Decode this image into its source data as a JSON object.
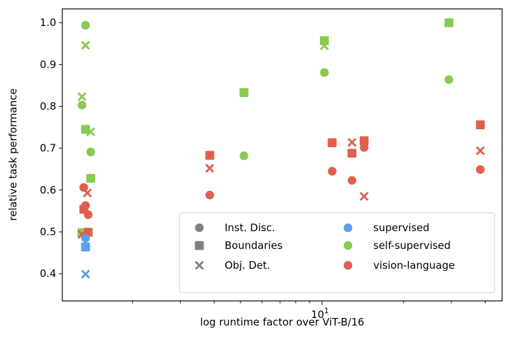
{
  "chart_data": {
    "type": "scatter",
    "title": "",
    "xlabel": "log runtime factor over ViT-B/16",
    "ylabel": "relative task performance",
    "xscale": "log",
    "xlim": [
      1.1,
      46.2
    ],
    "ylim": [
      0.335,
      1.033
    ],
    "xticks": [
      {
        "value": 10,
        "base": "10",
        "exp": "1"
      }
    ],
    "xminor": [
      2,
      3,
      4,
      5,
      6,
      7,
      8,
      9,
      20,
      30,
      40
    ],
    "yticks": [
      "0.4",
      "0.5",
      "0.6",
      "0.7",
      "0.8",
      "0.9",
      "1.0"
    ],
    "grid": false,
    "colors": {
      "supervised": "#5b9fe9",
      "self-supervised": "#8aca52",
      "vision-language": "#e06050",
      "legend_marker": "#808080"
    },
    "legend": {
      "placement": "lower-right",
      "markers": [
        {
          "label": "Inst. Disc.",
          "shape": "circle"
        },
        {
          "label": "Boundaries",
          "shape": "square"
        },
        {
          "label": "Obj. Det.",
          "shape": "x"
        }
      ],
      "groups": [
        {
          "label": "supervised",
          "key": "supervised"
        },
        {
          "label": "self-supervised",
          "key": "self-supervised"
        },
        {
          "label": "vision-language",
          "key": "vision-language"
        }
      ]
    },
    "points": [
      {
        "x": 1.34,
        "y": 0.994,
        "shape": "circle",
        "group": "self-supervised"
      },
      {
        "x": 1.34,
        "y": 0.946,
        "shape": "x",
        "group": "self-supervised"
      },
      {
        "x": 1.3,
        "y": 0.823,
        "shape": "x",
        "group": "self-supervised"
      },
      {
        "x": 1.3,
        "y": 0.803,
        "shape": "circle",
        "group": "self-supervised"
      },
      {
        "x": 1.34,
        "y": 0.745,
        "shape": "square",
        "group": "self-supervised"
      },
      {
        "x": 1.4,
        "y": 0.739,
        "shape": "x",
        "group": "self-supervised"
      },
      {
        "x": 1.4,
        "y": 0.691,
        "shape": "circle",
        "group": "self-supervised"
      },
      {
        "x": 1.4,
        "y": 0.628,
        "shape": "square",
        "group": "self-supervised"
      },
      {
        "x": 1.3,
        "y": 0.498,
        "shape": "square",
        "group": "self-supervised"
      },
      {
        "x": 1.32,
        "y": 0.606,
        "shape": "circle",
        "group": "vision-language"
      },
      {
        "x": 1.36,
        "y": 0.593,
        "shape": "x",
        "group": "vision-language"
      },
      {
        "x": 1.34,
        "y": 0.563,
        "shape": "circle",
        "group": "vision-language"
      },
      {
        "x": 1.32,
        "y": 0.554,
        "shape": "square",
        "group": "vision-language"
      },
      {
        "x": 1.37,
        "y": 0.541,
        "shape": "circle",
        "group": "vision-language"
      },
      {
        "x": 1.37,
        "y": 0.499,
        "shape": "square",
        "group": "vision-language"
      },
      {
        "x": 1.3,
        "y": 0.494,
        "shape": "x",
        "group": "vision-language"
      },
      {
        "x": 1.34,
        "y": 0.485,
        "shape": "circle",
        "group": "supervised"
      },
      {
        "x": 1.34,
        "y": 0.464,
        "shape": "square",
        "group": "supervised"
      },
      {
        "x": 1.34,
        "y": 0.399,
        "shape": "x",
        "group": "supervised"
      },
      {
        "x": 3.85,
        "y": 0.683,
        "shape": "square",
        "group": "vision-language"
      },
      {
        "x": 3.85,
        "y": 0.652,
        "shape": "x",
        "group": "vision-language"
      },
      {
        "x": 3.85,
        "y": 0.588,
        "shape": "circle",
        "group": "vision-language"
      },
      {
        "x": 5.15,
        "y": 0.833,
        "shape": "square",
        "group": "self-supervised"
      },
      {
        "x": 5.15,
        "y": 0.682,
        "shape": "circle",
        "group": "self-supervised"
      },
      {
        "x": 10.2,
        "y": 0.957,
        "shape": "square",
        "group": "self-supervised"
      },
      {
        "x": 10.2,
        "y": 0.945,
        "shape": "x",
        "group": "self-supervised"
      },
      {
        "x": 10.2,
        "y": 0.881,
        "shape": "circle",
        "group": "self-supervised"
      },
      {
        "x": 10.9,
        "y": 0.713,
        "shape": "square",
        "group": "vision-language"
      },
      {
        "x": 10.9,
        "y": 0.645,
        "shape": "circle",
        "group": "vision-language"
      },
      {
        "x": 12.9,
        "y": 0.714,
        "shape": "x",
        "group": "vision-language"
      },
      {
        "x": 12.9,
        "y": 0.688,
        "shape": "square",
        "group": "vision-language"
      },
      {
        "x": 12.9,
        "y": 0.623,
        "shape": "circle",
        "group": "vision-language"
      },
      {
        "x": 14.3,
        "y": 0.718,
        "shape": "square",
        "group": "vision-language"
      },
      {
        "x": 14.3,
        "y": 0.702,
        "shape": "circle",
        "group": "vision-language"
      },
      {
        "x": 14.3,
        "y": 0.585,
        "shape": "x",
        "group": "vision-language"
      },
      {
        "x": 29.4,
        "y": 1.0,
        "shape": "square",
        "group": "self-supervised"
      },
      {
        "x": 29.4,
        "y": 0.864,
        "shape": "circle",
        "group": "self-supervised"
      },
      {
        "x": 38.4,
        "y": 0.756,
        "shape": "square",
        "group": "vision-language"
      },
      {
        "x": 38.4,
        "y": 0.694,
        "shape": "x",
        "group": "vision-language"
      },
      {
        "x": 38.4,
        "y": 0.649,
        "shape": "circle",
        "group": "vision-language"
      }
    ]
  }
}
